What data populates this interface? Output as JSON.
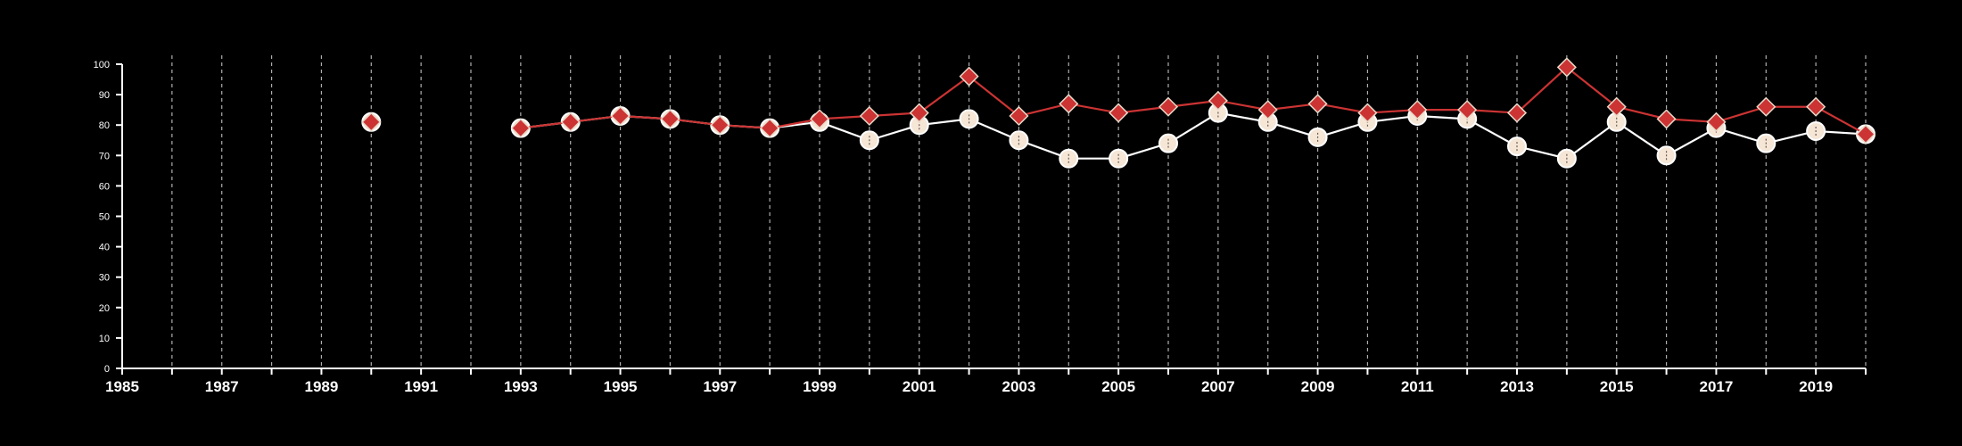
{
  "chart_data": {
    "type": "line",
    "xlim": [
      1985,
      2020
    ],
    "ylim": [
      0,
      100
    ],
    "x_ticks": [
      "1985",
      "1987",
      "1989",
      "1991",
      "1993",
      "1995",
      "1997",
      "1999",
      "2001",
      "2003",
      "2005",
      "2007",
      "2009",
      "2011",
      "2013",
      "2015",
      "2017",
      "2019"
    ],
    "y_ticks": [
      "0",
      "10",
      "20",
      "30",
      "40",
      "50",
      "60",
      "70",
      "80",
      "90",
      "100"
    ],
    "grid": "vertical dashed lines at each year",
    "legend": "none",
    "series": [
      {
        "marker": "circle",
        "color": "#ffffff",
        "marker_fill": "#f5e6d6",
        "points": [
          [
            1990,
            81
          ],
          [
            1993,
            79
          ],
          [
            1994,
            81
          ],
          [
            1995,
            83
          ],
          [
            1996,
            82
          ],
          [
            1997,
            80
          ],
          [
            1998,
            79
          ],
          [
            1999,
            81
          ],
          [
            2000,
            75
          ],
          [
            2001,
            80
          ],
          [
            2002,
            82
          ],
          [
            2003,
            75
          ],
          [
            2004,
            69
          ],
          [
            2005,
            69
          ],
          [
            2006,
            74
          ],
          [
            2007,
            84
          ],
          [
            2008,
            81
          ],
          [
            2009,
            76
          ],
          [
            2010,
            81
          ],
          [
            2011,
            83
          ],
          [
            2012,
            82
          ],
          [
            2013,
            73
          ],
          [
            2014,
            69
          ],
          [
            2015,
            81
          ],
          [
            2016,
            70
          ],
          [
            2017,
            79
          ],
          [
            2018,
            74
          ],
          [
            2019,
            78
          ],
          [
            2020,
            77
          ]
        ]
      },
      {
        "marker": "diamond",
        "color": "#cc3333",
        "marker_fill": "#cc3333",
        "points": [
          [
            1990,
            81
          ],
          [
            1993,
            79
          ],
          [
            1994,
            81
          ],
          [
            1995,
            83
          ],
          [
            1996,
            82
          ],
          [
            1997,
            80
          ],
          [
            1998,
            79
          ],
          [
            1999,
            82
          ],
          [
            2000,
            83
          ],
          [
            2001,
            84
          ],
          [
            2002,
            96
          ],
          [
            2003,
            83
          ],
          [
            2004,
            87
          ],
          [
            2005,
            84
          ],
          [
            2006,
            86
          ],
          [
            2007,
            88
          ],
          [
            2008,
            85
          ],
          [
            2009,
            87
          ],
          [
            2010,
            84
          ],
          [
            2011,
            85
          ],
          [
            2012,
            85
          ],
          [
            2013,
            84
          ],
          [
            2014,
            99
          ],
          [
            2015,
            86
          ],
          [
            2016,
            82
          ],
          [
            2017,
            81
          ],
          [
            2018,
            86
          ],
          [
            2019,
            86
          ],
          [
            2020,
            77
          ]
        ]
      }
    ]
  }
}
